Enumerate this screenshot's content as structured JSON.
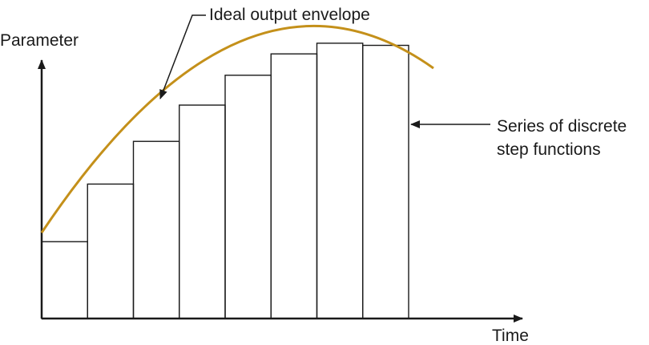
{
  "labels": {
    "y_axis": "Parameter",
    "x_axis": "Time",
    "envelope": "Ideal output envelope",
    "steps_line1": "Series of discrete",
    "steps_line2": "step functions"
  },
  "steps": [
    {
      "level": 0.36
    },
    {
      "level": 0.63
    },
    {
      "level": 0.83
    },
    {
      "level": 1.0
    },
    {
      "level": 1.14
    },
    {
      "level": 1.24
    },
    {
      "level": 1.29
    },
    {
      "level": 1.28
    }
  ],
  "colors": {
    "envelope": "#c4901a",
    "lines": "#1a1a1a",
    "background": "#ffffff"
  }
}
